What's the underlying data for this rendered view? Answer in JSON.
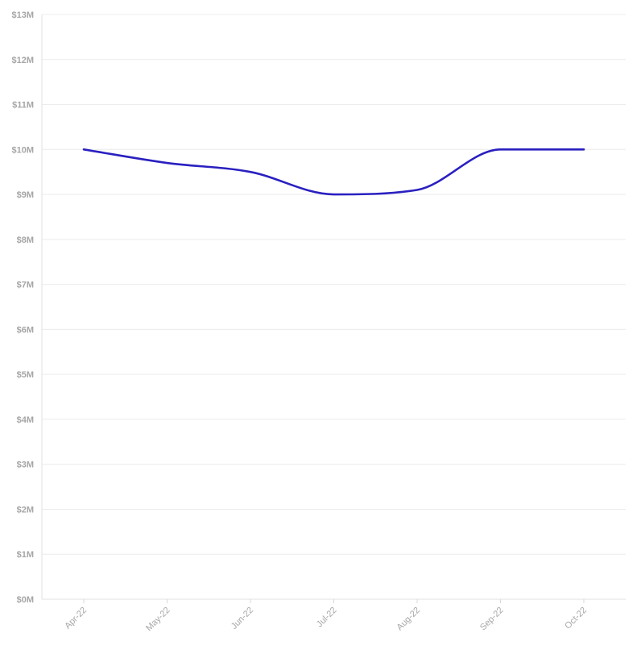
{
  "chart_data": {
    "type": "line",
    "title": "",
    "xlabel": "",
    "ylabel": "",
    "categories": [
      "Apr-22",
      "May-22",
      "Jun-22",
      "Jul-22",
      "Aug-22",
      "Sep-22",
      "Oct-22"
    ],
    "series": [
      {
        "values": [
          10.0,
          9.7,
          9.5,
          9.0,
          9.1,
          10.0,
          10.0
        ],
        "color": "#2a20c0"
      }
    ],
    "ylim": [
      0,
      13
    ],
    "y_ticks": [
      "$0M",
      "$1M",
      "$2M",
      "$3M",
      "$4M",
      "$5M",
      "$6M",
      "$7M",
      "$8M",
      "$9M",
      "$10M",
      "$11M",
      "$12M",
      "$13M"
    ],
    "grid": true,
    "legend": "none"
  }
}
